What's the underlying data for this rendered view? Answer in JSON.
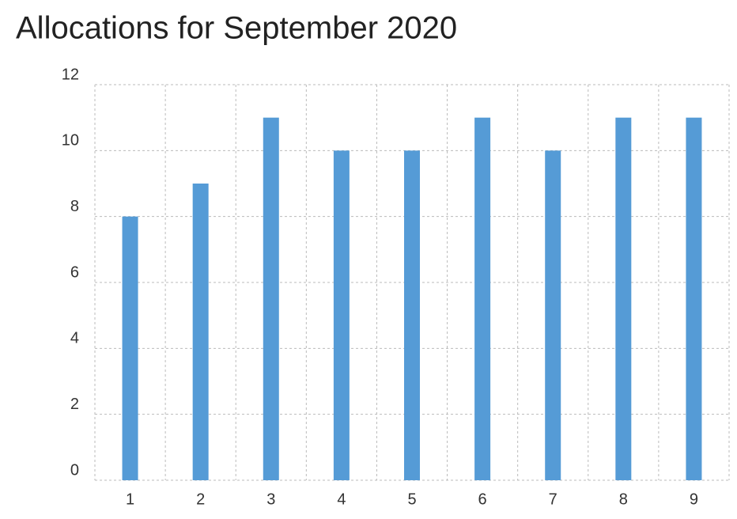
{
  "chart_data": {
    "type": "bar",
    "title": "Allocations for September 2020",
    "categories": [
      "1",
      "2",
      "3",
      "4",
      "5",
      "6",
      "7",
      "8",
      "9"
    ],
    "values": [
      8,
      9,
      11,
      10,
      10,
      11,
      10,
      11,
      11
    ],
    "color": "#559bd6",
    "ylim": [
      0,
      12
    ],
    "yticks": [
      0,
      2,
      4,
      6,
      8,
      10,
      12
    ],
    "grid": true
  }
}
